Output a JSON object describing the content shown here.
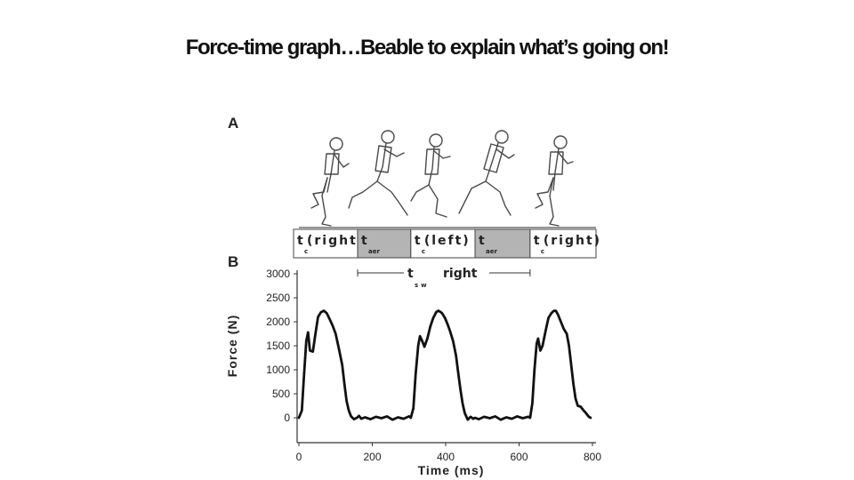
{
  "slide": {
    "title": "Force-time graph…Beable to explain what’s going on!"
  },
  "panels": {
    "a_label": "A",
    "b_label": "B"
  },
  "phase_bar": {
    "segments": [
      {
        "main": "t",
        "sub": "c",
        "suffix": "(right)",
        "shaded": false,
        "start": 0,
        "end": 160
      },
      {
        "main": "t",
        "sub": "aer",
        "suffix": "",
        "shaded": true,
        "start": 160,
        "end": 305
      },
      {
        "main": "t",
        "sub": "c",
        "suffix": "(left)",
        "shaded": false,
        "start": 305,
        "end": 480
      },
      {
        "main": "t",
        "sub": "aer",
        "suffix": "",
        "shaded": true,
        "start": 480,
        "end": 630
      },
      {
        "main": "t",
        "sub": "c",
        "suffix": "(right)",
        "shaded": false,
        "start": 630,
        "end": 810
      }
    ],
    "shade_color": "#b4b4b4"
  },
  "swing": {
    "main": "t",
    "sub": "sw",
    "label": "right",
    "start": 160,
    "end": 630
  },
  "chart_data": {
    "type": "line",
    "title": "",
    "xlabel": "Time   (ms)",
    "ylabel": "Force   (N)",
    "xlim": [
      0,
      800
    ],
    "ylim": [
      0,
      3000
    ],
    "xticks": [
      0,
      200,
      400,
      600,
      800
    ],
    "yticks": [
      0,
      500,
      1000,
      1500,
      2000,
      2500,
      3000
    ],
    "grid": false,
    "series": [
      {
        "color": "#111111",
        "x": [
          0,
          8,
          14,
          20,
          25,
          30,
          38,
          44,
          52,
          60,
          68,
          76,
          84,
          92,
          100,
          110,
          118,
          124,
          130,
          136,
          142,
          150,
          158,
          164,
          170,
          180,
          195,
          210,
          225,
          240,
          255,
          270,
          285,
          300,
          305,
          312,
          318,
          325,
          330,
          336,
          342,
          350,
          358,
          366,
          374,
          380,
          385,
          390,
          398,
          405,
          412,
          420,
          428,
          434,
          440,
          446,
          452,
          460,
          468,
          475,
          480,
          490,
          505,
          520,
          535,
          550,
          565,
          580,
          595,
          610,
          625,
          630,
          636,
          642,
          648,
          652,
          658,
          664,
          672,
          680,
          688,
          695,
          700,
          706,
          714,
          722,
          730,
          736,
          742,
          748,
          754,
          760,
          768,
          776,
          782,
          790,
          795
        ],
        "y": [
          0,
          150,
          900,
          1600,
          1780,
          1400,
          1380,
          1700,
          2100,
          2200,
          2230,
          2180,
          2050,
          1920,
          1750,
          1400,
          1100,
          700,
          350,
          150,
          30,
          -30,
          0,
          40,
          -20,
          10,
          -30,
          20,
          -10,
          30,
          -40,
          10,
          -20,
          30,
          0,
          200,
          900,
          1500,
          1700,
          1600,
          1480,
          1650,
          1900,
          2080,
          2200,
          2230,
          2210,
          2180,
          2080,
          1950,
          1800,
          1600,
          1300,
          950,
          600,
          300,
          100,
          -40,
          20,
          -20,
          0,
          -30,
          20,
          -10,
          30,
          -40,
          10,
          -20,
          30,
          -10,
          20,
          0,
          300,
          1000,
          1550,
          1650,
          1400,
          1500,
          1800,
          2080,
          2180,
          2230,
          2230,
          2150,
          2000,
          1850,
          1750,
          1500,
          1100,
          700,
          400,
          250,
          230,
          150,
          100,
          20,
          0
        ]
      }
    ]
  }
}
